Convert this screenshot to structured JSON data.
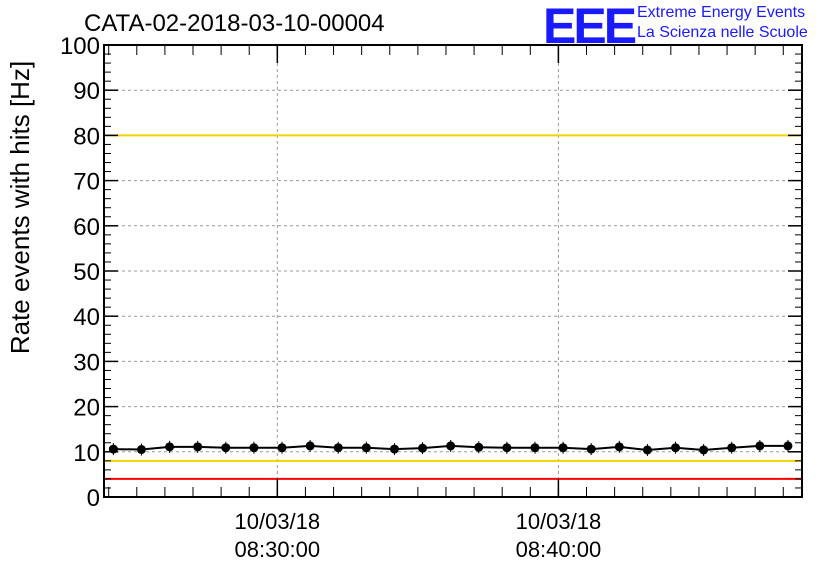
{
  "title": "CATA-02-2018-03-10-00004",
  "logo": {
    "mark": "EEE",
    "line1": "Extreme Energy Events",
    "line2": "La Scienza nelle Scuole",
    "color": "#1a1aff"
  },
  "chart_data": {
    "type": "line",
    "title": "CATA-02-2018-03-10-00004",
    "ylabel": "Rate events with hits [Hz]",
    "xlabel": "",
    "ylim": [
      0,
      100
    ],
    "yticks": [
      0,
      10,
      20,
      30,
      40,
      50,
      60,
      70,
      80,
      90,
      100
    ],
    "xlim": [
      "2018-03-10T08:23:50",
      "2018-03-10T08:48:40"
    ],
    "xticks": [
      {
        "t": "2018-03-10T08:30:00",
        "date": "10/03/18",
        "time": "08:30:00"
      },
      {
        "t": "2018-03-10T08:40:00",
        "date": "10/03/18",
        "time": "08:40:00"
      }
    ],
    "grid": true,
    "reference_lines": [
      {
        "y": 100,
        "color": "#ff0000"
      },
      {
        "y": 80,
        "color": "#f2d200"
      },
      {
        "y": 8,
        "color": "#f2d200"
      },
      {
        "y": 4,
        "color": "#ff0000"
      }
    ],
    "series": [
      {
        "color": "#000000",
        "x": [
          "2018-03-10T08:24:10",
          "2018-03-10T08:25:10",
          "2018-03-10T08:26:10",
          "2018-03-10T08:27:10",
          "2018-03-10T08:28:10",
          "2018-03-10T08:29:10",
          "2018-03-10T08:30:10",
          "2018-03-10T08:31:10",
          "2018-03-10T08:32:10",
          "2018-03-10T08:33:10",
          "2018-03-10T08:34:10",
          "2018-03-10T08:35:10",
          "2018-03-10T08:36:10",
          "2018-03-10T08:37:10",
          "2018-03-10T08:38:10",
          "2018-03-10T08:39:10",
          "2018-03-10T08:40:10",
          "2018-03-10T08:41:10",
          "2018-03-10T08:42:10",
          "2018-03-10T08:43:10",
          "2018-03-10T08:44:10",
          "2018-03-10T08:45:10",
          "2018-03-10T08:46:10",
          "2018-03-10T08:47:10",
          "2018-03-10T08:48:10"
        ],
        "values": [
          10.6,
          10.5,
          11.1,
          11.1,
          10.9,
          10.9,
          10.9,
          11.3,
          10.9,
          10.9,
          10.6,
          10.8,
          11.3,
          11.0,
          10.9,
          10.9,
          10.9,
          10.6,
          11.1,
          10.4,
          10.9,
          10.4,
          10.9,
          11.3,
          11.3
        ]
      }
    ]
  }
}
